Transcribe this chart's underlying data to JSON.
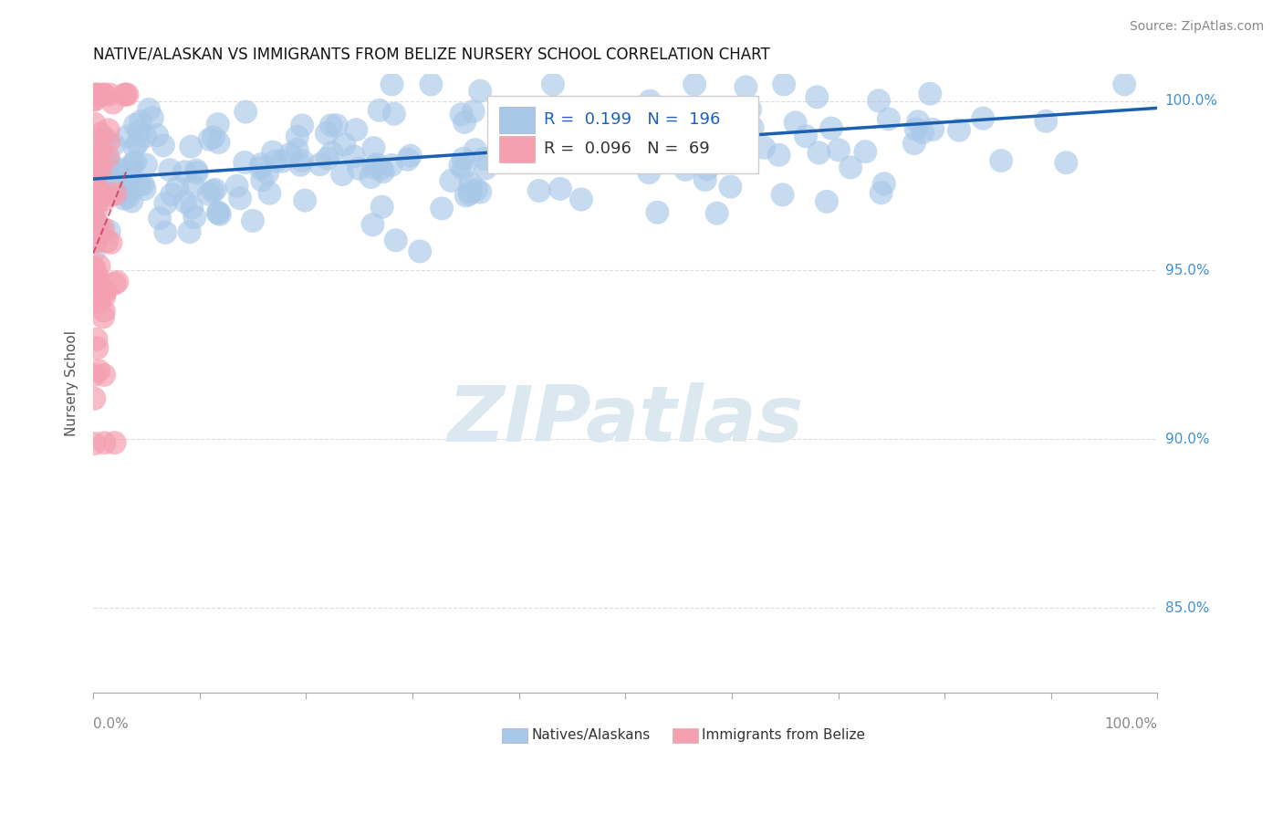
{
  "title": "NATIVE/ALASKAN VS IMMIGRANTS FROM BELIZE NURSERY SCHOOL CORRELATION CHART",
  "source": "Source: ZipAtlas.com",
  "ylabel": "Nursery School",
  "ytick_labels": [
    "85.0%",
    "90.0%",
    "95.0%",
    "100.0%"
  ],
  "ytick_values": [
    0.85,
    0.9,
    0.95,
    1.0
  ],
  "xlim": [
    0.0,
    1.0
  ],
  "ylim": [
    0.825,
    1.008
  ],
  "watermark_text": "ZIPatlas",
  "legend_blue_R": "0.199",
  "legend_blue_N": "196",
  "legend_pink_R": "0.096",
  "legend_pink_N": "69",
  "blue_color": "#a8c8e8",
  "pink_color": "#f4a0b0",
  "blue_line_color": "#1a5fb0",
  "pink_line_color": "#d04060",
  "title_fontsize": 12,
  "source_fontsize": 10,
  "legend_R_blue_color": "#2060c0",
  "legend_R_pink_color": "#333333",
  "yaxis_label_color": "#4090d0",
  "grid_color": "#dddddd",
  "n_blue": 196,
  "n_pink": 69
}
